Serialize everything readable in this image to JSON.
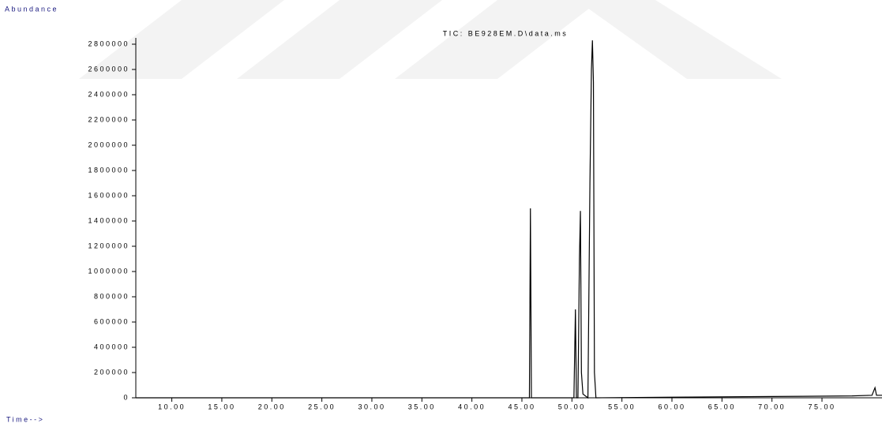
{
  "chart_data": {
    "type": "line",
    "title": "TIC: BE928EM.D\\data.ms",
    "y_label": "Abundance",
    "x_label": "Time-->",
    "x": [
      6.4,
      45.6,
      45.75,
      45.85,
      45.95,
      50.2,
      50.35,
      50.45,
      50.6,
      50.75,
      50.85,
      50.95,
      51.1,
      51.6,
      51.8,
      51.95,
      52.05,
      52.15,
      52.25,
      52.4,
      60,
      70,
      78,
      80,
      80.3,
      80.45,
      81
    ],
    "values": [
      0,
      0,
      0,
      1500000,
      0,
      0,
      700000,
      0,
      0,
      1100000,
      1480000,
      200000,
      30000,
      0,
      1700000,
      2600000,
      2830000,
      2500000,
      200000,
      0,
      5000,
      10000,
      15000,
      20000,
      80000,
      20000,
      20000
    ],
    "color": "#000000",
    "xlim": [
      6.4,
      81
    ],
    "ylim": [
      0,
      2850000
    ],
    "xticks": [
      {
        "value": 10,
        "label": "10.00"
      },
      {
        "value": 15,
        "label": "15.00"
      },
      {
        "value": 20,
        "label": "20.00"
      },
      {
        "value": 25,
        "label": "25.00"
      },
      {
        "value": 30,
        "label": "30.00"
      },
      {
        "value": 35,
        "label": "35.00"
      },
      {
        "value": 40,
        "label": "40.00"
      },
      {
        "value": 45,
        "label": "45.00"
      },
      {
        "value": 50,
        "label": "50.00"
      },
      {
        "value": 55,
        "label": "55.00"
      },
      {
        "value": 60,
        "label": "60.00"
      },
      {
        "value": 65,
        "label": "65.00"
      },
      {
        "value": 70,
        "label": "70.00"
      },
      {
        "value": 75,
        "label": "75.00"
      }
    ],
    "yticks": [
      0,
      200000,
      400000,
      600000,
      800000,
      1000000,
      1200000,
      1400000,
      1600000,
      1800000,
      2000000,
      2200000,
      2400000,
      2600000,
      2800000
    ]
  }
}
